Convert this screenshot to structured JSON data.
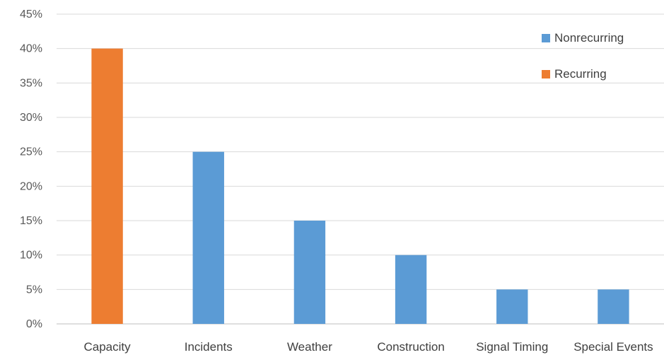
{
  "chart_data": {
    "type": "bar",
    "title": "",
    "xlabel": "",
    "ylabel": "",
    "categories": [
      "Capacity",
      "Incidents",
      "Weather",
      "Construction",
      "Signal Timing",
      "Special Events"
    ],
    "series": [
      {
        "name": "Nonrecurring",
        "color": "#5b9bd5",
        "values": [
          null,
          0.25,
          0.15,
          0.1,
          0.05,
          0.05
        ]
      },
      {
        "name": "Recurring",
        "color": "#ed7d31",
        "values": [
          0.4,
          null,
          null,
          null,
          null,
          null
        ]
      }
    ],
    "ylim": [
      0,
      0.45
    ],
    "yticks": [
      0,
      0.05,
      0.1,
      0.15,
      0.2,
      0.25,
      0.3,
      0.35,
      0.4,
      0.45
    ],
    "ytick_labels": [
      "0%",
      "5%",
      "10%",
      "15%",
      "20%",
      "25%",
      "30%",
      "35%",
      "40%",
      "45%"
    ],
    "grid": true,
    "legend_position": "top-right"
  }
}
